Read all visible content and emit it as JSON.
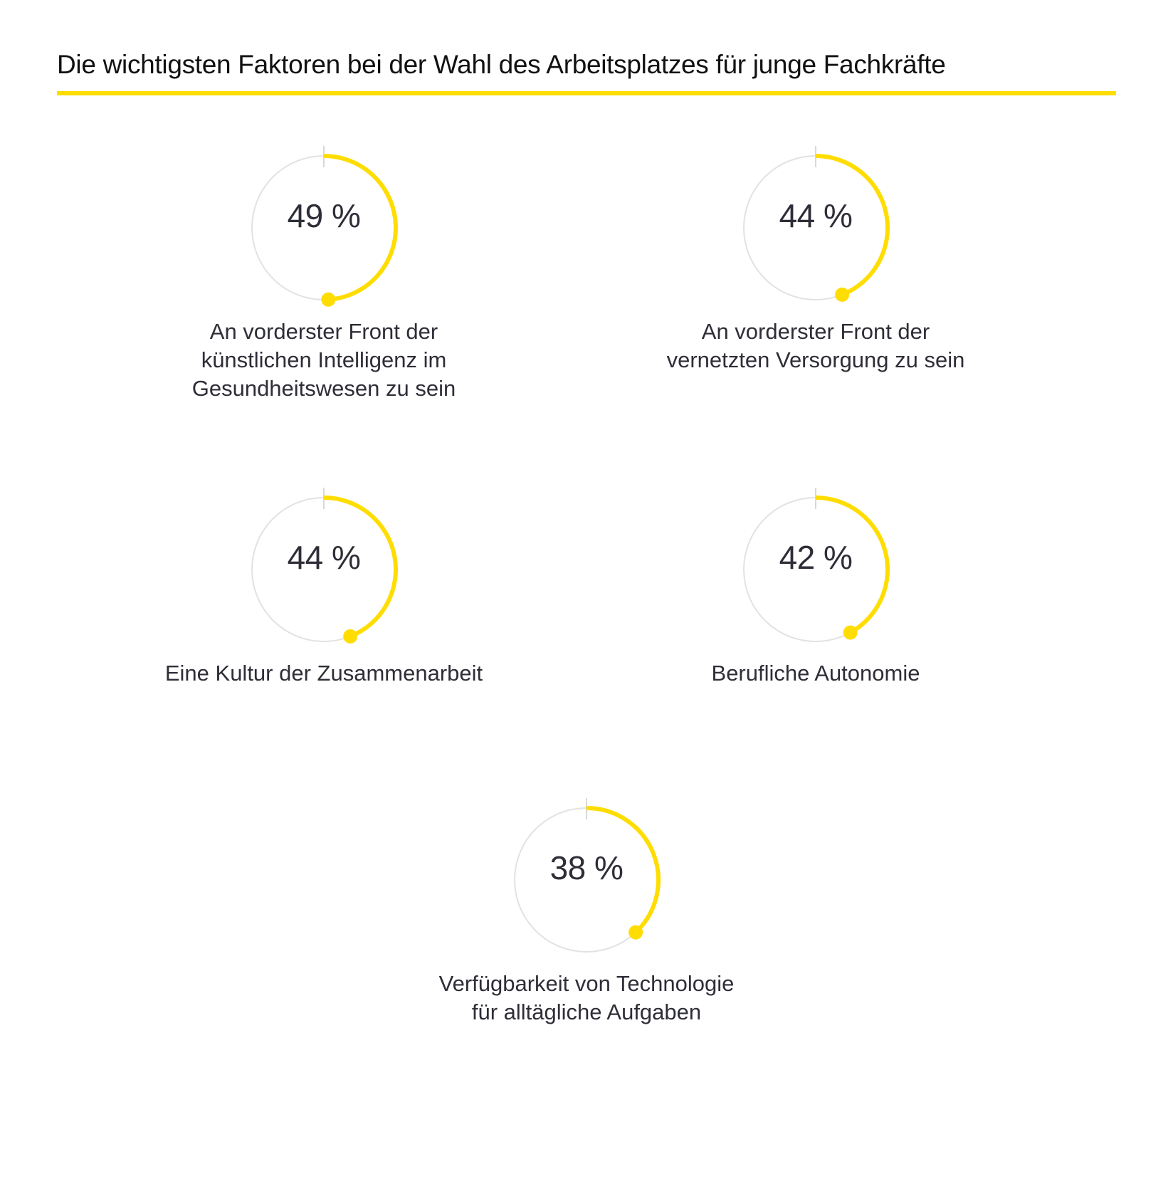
{
  "title": "Die wichtigsten Faktoren bei der Wahl des Arbeitsplatzes für junge Fachkräfte",
  "colors": {
    "accent": "#FFDD00",
    "track": "#E2E2E2",
    "text": "#2E2E38"
  },
  "items": [
    {
      "value": 49,
      "value_label": "49 %",
      "label_lines": [
        "An vorderster Front der",
        "künstlichen Intelligenz im",
        "Gesundheitswesen zu sein"
      ]
    },
    {
      "value": 44,
      "value_label": "44 %",
      "label_lines": [
        "An vorderster Front der",
        "vernetzten Versorgung zu sein"
      ]
    },
    {
      "value": 44,
      "value_label": "44 %",
      "label_lines": [
        "Eine Kultur der Zusammenarbeit"
      ]
    },
    {
      "value": 42,
      "value_label": "42 %",
      "label_lines": [
        "Berufliche Autonomie"
      ]
    },
    {
      "value": 38,
      "value_label": "38 %",
      "label_lines": [
        "Verfügbarkeit von Technologie",
        "für alltägliche Aufgaben"
      ]
    }
  ],
  "chart_data": {
    "type": "pie",
    "subtype": "radial-progress",
    "title": "Die wichtigsten Faktoren bei der Wahl des Arbeitsplatzes für junge Fachkräfte",
    "unit": "%",
    "categories": [
      "An vorderster Front der künstlichen Intelligenz im Gesundheitswesen zu sein",
      "An vorderster Front der vernetzten Versorgung zu sein",
      "Eine Kultur der Zusammenarbeit",
      "Berufliche Autonomie",
      "Verfügbarkeit von Technologie für alltägliche Aufgaben"
    ],
    "values": [
      49,
      44,
      44,
      42,
      38
    ],
    "ylim": [
      0,
      100
    ]
  }
}
